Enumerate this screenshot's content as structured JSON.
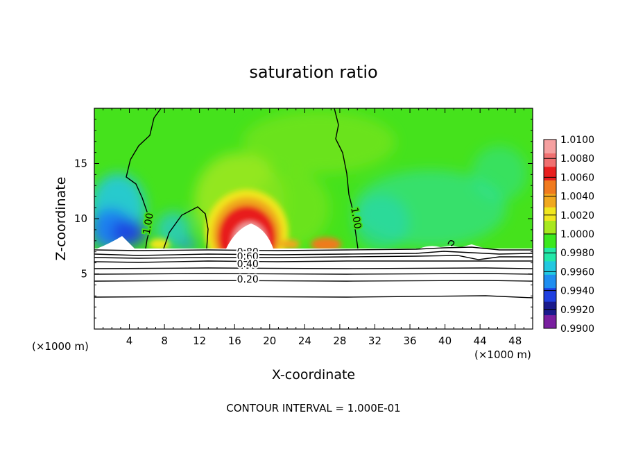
{
  "chart_data": {
    "type": "heatmap",
    "title": "saturation ratio",
    "xlabel": "X-coordinate",
    "ylabel": "Z-coordinate",
    "x_unit_left": "(×1000 m)",
    "x_unit_right": "(×1000 m)",
    "xlim": [
      0,
      50
    ],
    "ylim": [
      0,
      20
    ],
    "x_ticks": [
      4,
      8,
      12,
      16,
      20,
      24,
      28,
      32,
      36,
      40,
      44,
      48
    ],
    "y_ticks": [
      5,
      10,
      15
    ],
    "colorbar": {
      "min": 0.99,
      "max": 1.01,
      "levels": [
        "1.0100",
        "1.0080",
        "1.0060",
        "1.0040",
        "1.0020",
        "1.0000",
        "0.9980",
        "0.9960",
        "0.9940",
        "0.9920",
        "0.9900"
      ],
      "colors": [
        "#7a1fa0",
        "#1a1a8c",
        "#1f3fe0",
        "#1f8ef0",
        "#22c8e0",
        "#22e8a8",
        "#3ce81e",
        "#a8e81e",
        "#f0e61e",
        "#f0a81e",
        "#f07a1e",
        "#e81e1e",
        "#f07070",
        "#f5a0a0"
      ]
    },
    "contour_labels": [
      {
        "text": "1.00",
        "x": 6.5,
        "z": 9.5
      },
      {
        "text": "1.00",
        "x": 29.5,
        "z": 10.0
      },
      {
        "text": "0.80",
        "x": 17.5,
        "z": 6.7
      },
      {
        "text": "0.60",
        "x": 17.5,
        "z": 6.3
      },
      {
        "text": "0.40",
        "x": 17.5,
        "z": 5.6
      },
      {
        "text": "0.20",
        "x": 17.5,
        "z": 4.2
      }
    ],
    "annotation": "CONTOUR INTERVAL = 1.000E-01",
    "grid": false,
    "legend_placement": "right"
  }
}
